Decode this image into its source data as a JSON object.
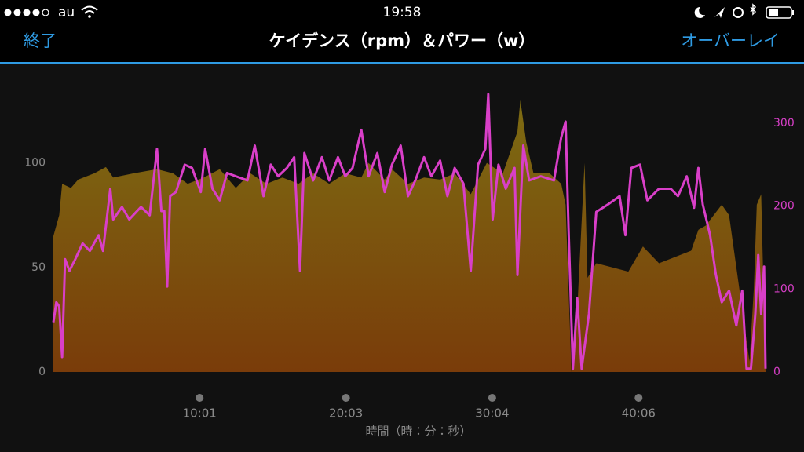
{
  "status_bar": {
    "carrier": "au",
    "time": "19:58"
  },
  "nav": {
    "back": "終了",
    "title": "ケイデンス（rpm）＆パワー（w）",
    "action": "オーバーレイ"
  },
  "chart_data": {
    "type": "area-line",
    "xlabel": "時間（時：分：秒）",
    "xlim": [
      0,
      48.8
    ],
    "xticks": [
      {
        "value": 10.02,
        "label": "10:01"
      },
      {
        "value": 20.05,
        "label": "20:03"
      },
      {
        "value": 30.07,
        "label": "30:04"
      },
      {
        "value": 40.1,
        "label": "40:06"
      }
    ],
    "ylim": [
      0,
      140
    ],
    "yticks": [
      0,
      50,
      100
    ],
    "y2lim": [
      0,
      353
    ],
    "y2ticks": [
      0,
      100,
      200,
      300
    ],
    "grid": false,
    "series": [
      {
        "color": "#7d6c12",
        "x": [
          0,
          0.4,
          0.6,
          1.2,
          1.7,
          2.8,
          3.6,
          4.1,
          5.5,
          7.1,
          8.2,
          9.2,
          10.3,
          11.4,
          12.5,
          13.5,
          14.6,
          15.7,
          16.8,
          17.8,
          18.9,
          20.0,
          21.1,
          21.6,
          22.7,
          23.2,
          24.3,
          25.4,
          26.5,
          27.5,
          28.6,
          29.7,
          30.8,
          31.8,
          32.0,
          32.4,
          32.9,
          34.0,
          34.8,
          35.1,
          35.5,
          35.9,
          36.4,
          36.6,
          37.2,
          38.3,
          39.4,
          40.4,
          41.5,
          42.6,
          43.7,
          44.2,
          44.7,
          45.8,
          46.3,
          46.9,
          47.4,
          47.7,
          48.0,
          48.2,
          48.5,
          48.8
        ],
        "values": [
          65,
          75,
          90,
          88,
          92,
          95,
          98,
          93,
          95,
          97,
          95,
          90,
          93,
          97,
          88,
          95,
          90,
          93,
          90,
          95,
          90,
          95,
          93,
          100,
          92,
          97,
          90,
          93,
          92,
          95,
          85,
          100,
          95,
          115,
          130,
          110,
          95,
          95,
          90,
          80,
          0,
          30,
          100,
          45,
          52,
          50,
          48,
          60,
          52,
          55,
          58,
          68,
          70,
          80,
          75,
          45,
          20,
          5,
          40,
          80,
          85,
          0
        ]
      },
      {
        "color": "#d93fc8",
        "axis": "y2",
        "x": [
          0,
          0.2,
          0.4,
          0.6,
          0.8,
          1.1,
          1.5,
          2.0,
          2.5,
          3.1,
          3.4,
          3.9,
          4.1,
          4.7,
          5.2,
          6.0,
          6.6,
          7.1,
          7.4,
          7.6,
          7.8,
          8.0,
          8.4,
          9.0,
          9.5,
          10.1,
          10.4,
          10.9,
          11.4,
          11.9,
          12.5,
          13.3,
          13.8,
          14.4,
          14.9,
          15.4,
          16.0,
          16.5,
          16.9,
          17.2,
          17.8,
          18.4,
          18.9,
          19.5,
          20.0,
          20.5,
          21.1,
          21.6,
          22.2,
          22.7,
          23.2,
          23.8,
          24.3,
          24.8,
          25.4,
          25.9,
          26.5,
          27.0,
          27.5,
          28.1,
          28.6,
          29.1,
          29.6,
          29.8,
          30.1,
          30.5,
          31.0,
          31.6,
          31.8,
          32.2,
          32.6,
          33.4,
          34.3,
          34.8,
          35.1,
          35.3,
          35.6,
          35.9,
          36.2,
          36.7,
          37.2,
          38.0,
          38.8,
          39.2,
          39.6,
          40.2,
          40.7,
          41.5,
          42.3,
          42.8,
          43.4,
          43.9,
          44.2,
          44.5,
          45.0,
          45.4,
          45.8,
          46.3,
          46.8,
          47.2,
          47.5,
          47.8,
          48.1,
          48.3,
          48.5,
          48.7,
          48.8
        ],
        "values": [
          60,
          84,
          79,
          18,
          136,
          122,
          136,
          155,
          146,
          165,
          146,
          221,
          184,
          199,
          184,
          199,
          189,
          269,
          194,
          194,
          103,
          212,
          217,
          250,
          246,
          217,
          269,
          221,
          207,
          240,
          236,
          231,
          273,
          212,
          250,
          236,
          246,
          259,
          122,
          264,
          231,
          259,
          231,
          259,
          236,
          246,
          292,
          236,
          264,
          217,
          250,
          273,
          212,
          231,
          259,
          236,
          255,
          212,
          246,
          227,
          122,
          250,
          269,
          335,
          184,
          250,
          221,
          246,
          117,
          273,
          231,
          236,
          231,
          283,
          302,
          174,
          4,
          89,
          4,
          70,
          193,
          202,
          212,
          165,
          246,
          250,
          207,
          221,
          221,
          212,
          236,
          198,
          246,
          202,
          165,
          117,
          84,
          98,
          56,
          98,
          4,
          4,
          70,
          141,
          70,
          127,
          4
        ]
      }
    ]
  }
}
